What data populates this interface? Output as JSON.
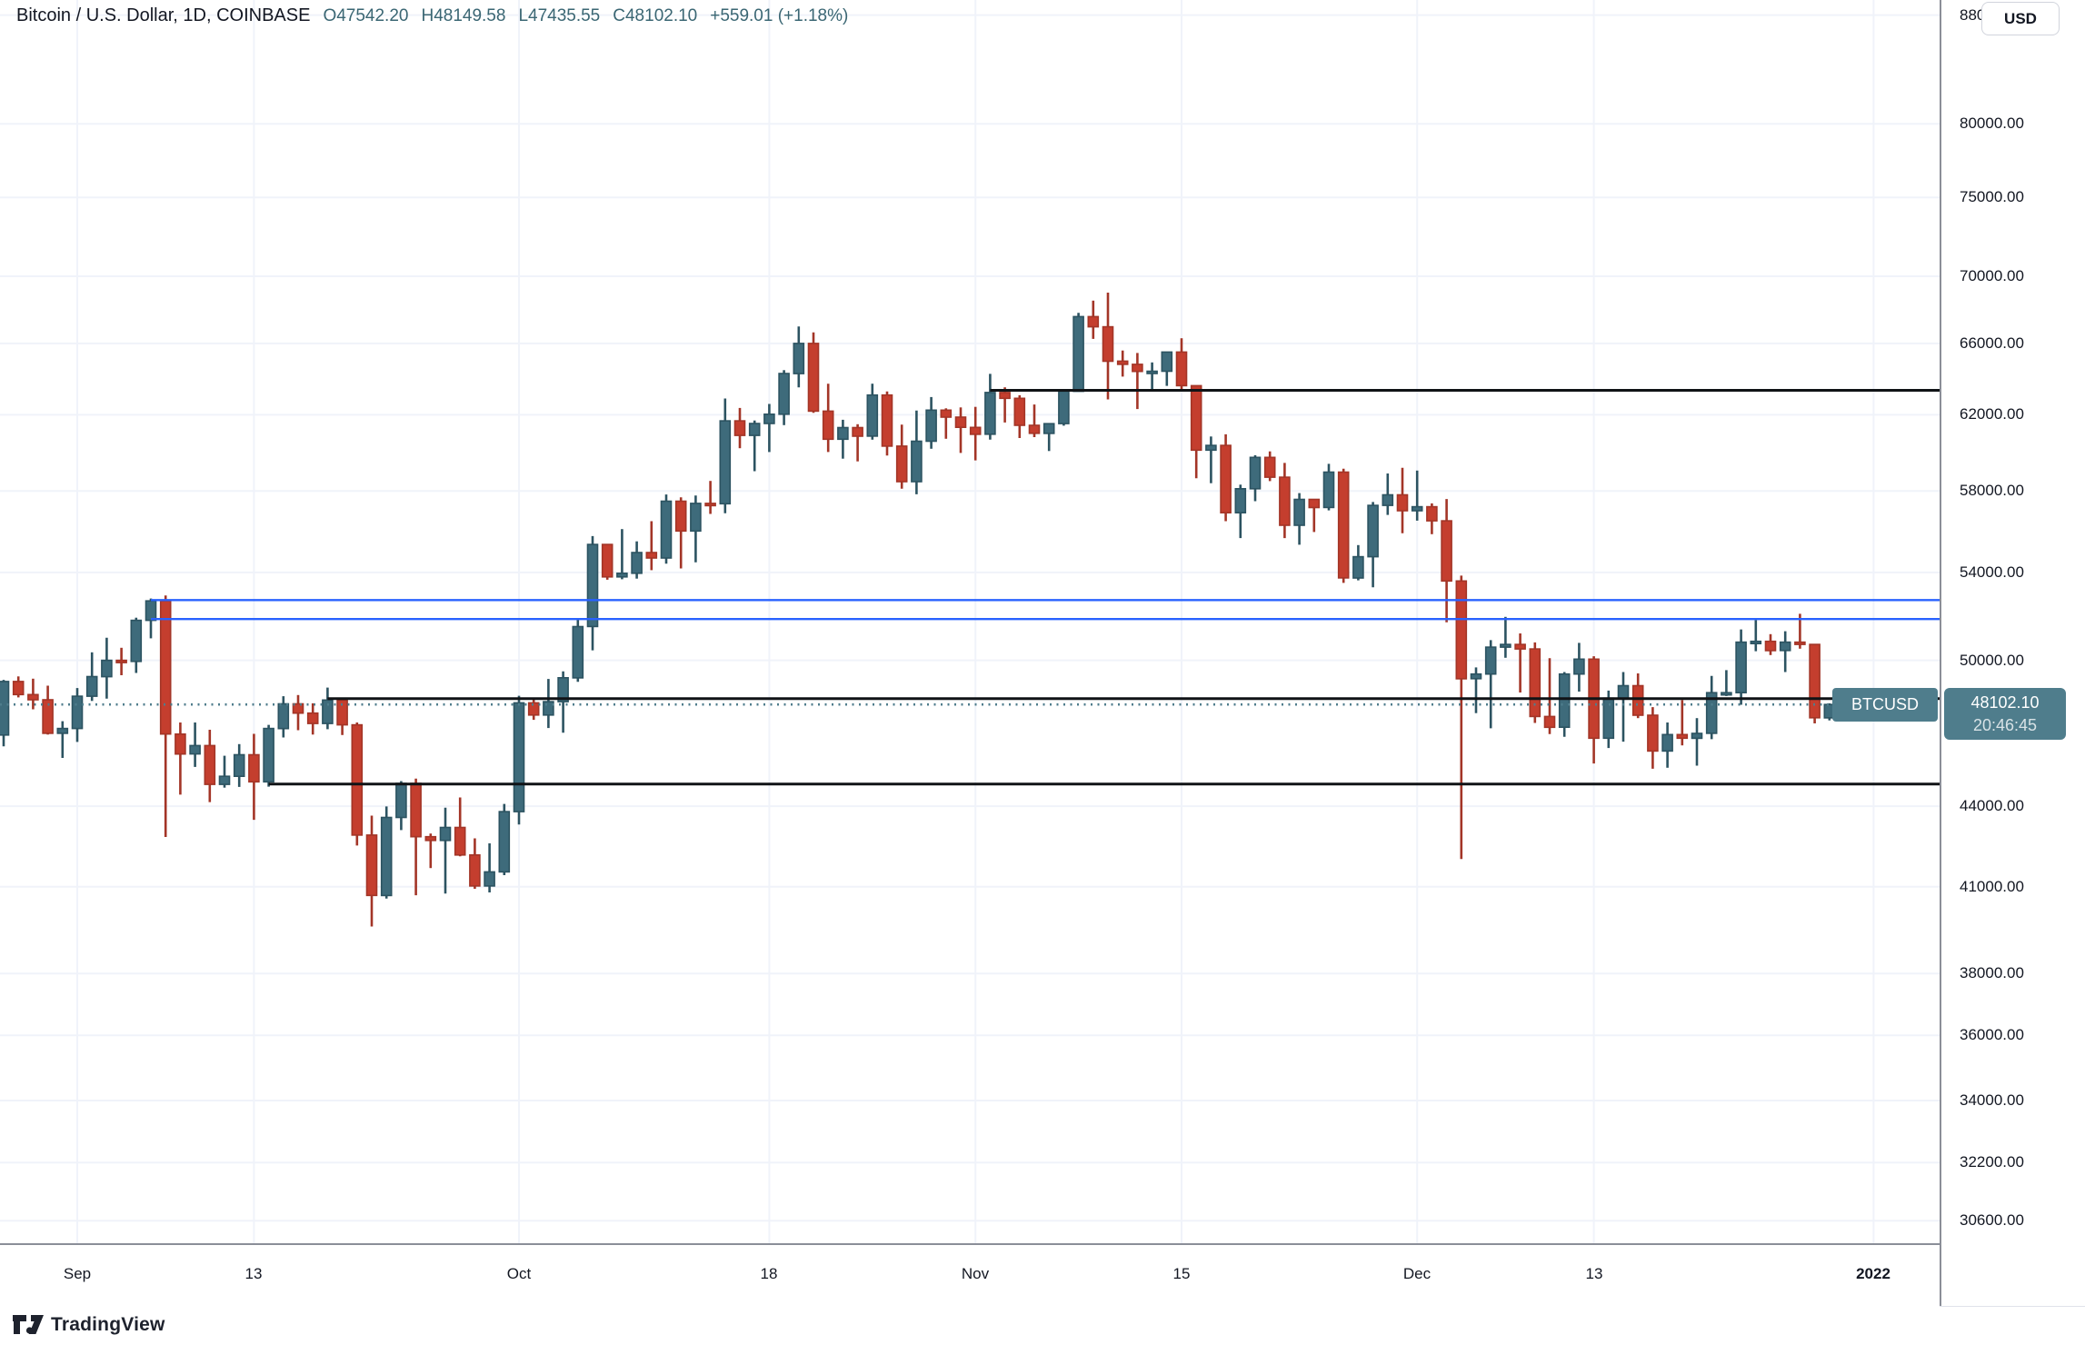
{
  "header": {
    "symbol_title": "Bitcoin / U.S. Dollar, 1D, COINBASE",
    "open": "O47542.20",
    "high": "H48149.58",
    "low": "L47435.55",
    "close": "C48102.10",
    "change": "+559.01 (+1.18%)"
  },
  "price_axis": {
    "currency_button": "USD",
    "ticks": [
      88000,
      80000,
      75000,
      70000,
      66000,
      62000,
      58000,
      54000,
      50000,
      44000,
      41000,
      38000,
      36000,
      34000,
      32200,
      30600
    ],
    "price_tag": {
      "symbol": "BTCUSD",
      "price": "48102.10",
      "countdown": "20:46:45"
    }
  },
  "time_axis": {
    "ticks": [
      {
        "label": "Sep",
        "date": "2021-09-01",
        "bold": false
      },
      {
        "label": "13",
        "date": "2021-09-13",
        "bold": false
      },
      {
        "label": "Oct",
        "date": "2021-10-01",
        "bold": false
      },
      {
        "label": "18",
        "date": "2021-10-18",
        "bold": false
      },
      {
        "label": "Nov",
        "date": "2021-11-01",
        "bold": false
      },
      {
        "label": "15",
        "date": "2021-11-15",
        "bold": false
      },
      {
        "label": "Dec",
        "date": "2021-12-01",
        "bold": false
      },
      {
        "label": "13",
        "date": "2021-12-13",
        "bold": false
      },
      {
        "label": "2022",
        "date": "2022-01-01",
        "bold": true
      }
    ]
  },
  "footer": {
    "brand": "TradingView"
  },
  "colors": {
    "up": "#3e6b7b",
    "up_border": "#2c5361",
    "down": "#c43e2e",
    "down_border": "#a33527",
    "line_black": "#101316",
    "line_blue": "#2962ff",
    "price_line": "#4f7d8c",
    "tag_bg": "#4f7d8c",
    "grid": "#f0f3fa",
    "text": "#131722",
    "values": "#3a6673"
  },
  "chart_data": {
    "type": "candlestick",
    "symbol": "BTCUSD",
    "exchange": "COINBASE",
    "interval": "1D",
    "price_scale": "log",
    "title": "Bitcoin / U.S. Dollar, 1D, COINBASE",
    "ylim": [
      29500,
      90000
    ],
    "grid": true,
    "current_price_line": {
      "price": 48102.1,
      "style": "dotted"
    },
    "horizontal_lines": [
      {
        "price": 63340,
        "start_date": "2021-11-02",
        "color": "black",
        "name": "resistance-line"
      },
      {
        "price": 48350,
        "start_date": "2021-09-18",
        "color": "black",
        "name": "support-resistance-line"
      },
      {
        "price": 44860,
        "start_date": "2021-09-14",
        "color": "black",
        "name": "support-line"
      },
      {
        "price": 52710,
        "start_date": "2021-09-06",
        "color": "blue",
        "name": "channel-upper-line"
      },
      {
        "price": 51840,
        "start_date": "2021-09-06",
        "color": "blue",
        "name": "channel-lower-line"
      }
    ],
    "candles": [
      [
        "2021-08-27",
        46830,
        49150,
        46370,
        49080
      ],
      [
        "2021-08-28",
        49080,
        49300,
        48400,
        48520
      ],
      [
        "2021-08-29",
        48520,
        49200,
        47900,
        48300
      ],
      [
        "2021-08-30",
        48300,
        48900,
        46850,
        46900
      ],
      [
        "2021-08-31",
        46900,
        47400,
        45900,
        47100
      ],
      [
        "2021-09-01",
        47100,
        48800,
        46550,
        48450
      ],
      [
        "2021-09-02",
        48450,
        50350,
        48250,
        49290
      ],
      [
        "2021-09-03",
        49290,
        51000,
        48350,
        50000
      ],
      [
        "2021-09-04",
        50000,
        50550,
        49350,
        49950
      ],
      [
        "2021-09-05",
        49950,
        51900,
        49450,
        51780
      ],
      [
        "2021-09-06",
        51780,
        52780,
        50970,
        52670
      ],
      [
        "2021-09-07",
        52670,
        52920,
        42830,
        46870
      ],
      [
        "2021-09-08",
        46870,
        47350,
        44450,
        46060
      ],
      [
        "2021-09-09",
        46060,
        47350,
        45540,
        46400
      ],
      [
        "2021-09-10",
        46400,
        47050,
        44160,
        44850
      ],
      [
        "2021-09-11",
        44850,
        45990,
        44720,
        45170
      ],
      [
        "2021-09-12",
        45170,
        46460,
        44750,
        46030
      ],
      [
        "2021-09-13",
        46030,
        46880,
        43480,
        44950
      ],
      [
        "2021-09-14",
        44950,
        47250,
        44760,
        47100
      ],
      [
        "2021-09-15",
        47100,
        48450,
        46730,
        48130
      ],
      [
        "2021-09-16",
        48130,
        48500,
        47030,
        47740
      ],
      [
        "2021-09-17",
        47740,
        48150,
        46850,
        47310
      ],
      [
        "2021-09-18",
        47310,
        48820,
        47070,
        48290
      ],
      [
        "2021-09-19",
        48290,
        48370,
        46830,
        47250
      ],
      [
        "2021-09-20",
        47250,
        47350,
        42510,
        42900
      ],
      [
        "2021-09-21",
        42900,
        43640,
        39600,
        40690
      ],
      [
        "2021-09-22",
        40690,
        43990,
        40580,
        43570
      ],
      [
        "2021-09-23",
        43570,
        44980,
        43090,
        44890
      ],
      [
        "2021-09-24",
        44890,
        45080,
        40700,
        42840
      ],
      [
        "2021-09-25",
        42840,
        42960,
        41680,
        42700
      ],
      [
        "2021-09-26",
        42700,
        43940,
        40760,
        43190
      ],
      [
        "2021-09-27",
        43190,
        44340,
        42110,
        42160
      ],
      [
        "2021-09-28",
        42160,
        42780,
        40930,
        41030
      ],
      [
        "2021-09-29",
        41030,
        42590,
        40800,
        41540
      ],
      [
        "2021-09-30",
        41540,
        44090,
        41420,
        43790
      ],
      [
        "2021-10-01",
        43790,
        48470,
        43300,
        48170
      ],
      [
        "2021-10-02",
        48170,
        48330,
        47460,
        47660
      ],
      [
        "2021-10-03",
        47660,
        49190,
        47120,
        48220
      ],
      [
        "2021-10-04",
        48220,
        49520,
        46930,
        49240
      ],
      [
        "2021-10-05",
        49240,
        51880,
        49070,
        51500
      ],
      [
        "2021-10-06",
        51500,
        55750,
        50440,
        55340
      ],
      [
        "2021-10-07",
        55340,
        55340,
        53660,
        53790
      ],
      [
        "2021-10-08",
        53790,
        56090,
        53680,
        53960
      ],
      [
        "2021-10-09",
        53960,
        55490,
        53710,
        54950
      ],
      [
        "2021-10-10",
        54950,
        56480,
        54110,
        54690
      ],
      [
        "2021-10-11",
        54690,
        57820,
        54420,
        57480
      ],
      [
        "2021-10-12",
        57480,
        57670,
        54190,
        56000
      ],
      [
        "2021-10-13",
        56000,
        57770,
        54480,
        57370
      ],
      [
        "2021-10-14",
        57370,
        58510,
        56840,
        57350
      ],
      [
        "2021-10-15",
        57350,
        62890,
        56880,
        61670
      ],
      [
        "2021-10-16",
        61670,
        62370,
        60210,
        60890
      ],
      [
        "2021-10-17",
        60890,
        61690,
        59010,
        61530
      ],
      [
        "2021-10-18",
        61530,
        62590,
        60010,
        62030
      ],
      [
        "2021-10-19",
        62030,
        64470,
        61440,
        64280
      ],
      [
        "2021-10-20",
        64280,
        66990,
        63510,
        66000
      ],
      [
        "2021-10-21",
        66000,
        66640,
        62110,
        62200
      ],
      [
        "2021-10-22",
        62200,
        63710,
        60010,
        60690
      ],
      [
        "2021-10-23",
        60690,
        61730,
        59660,
        61310
      ],
      [
        "2021-10-24",
        61310,
        61490,
        59520,
        60850
      ],
      [
        "2021-10-25",
        60850,
        63710,
        60660,
        63080
      ],
      [
        "2021-10-26",
        63080,
        63280,
        59830,
        60320
      ],
      [
        "2021-10-27",
        60320,
        61470,
        58110,
        58470
      ],
      [
        "2021-10-28",
        58470,
        62230,
        57830,
        60580
      ],
      [
        "2021-10-29",
        60580,
        62970,
        60180,
        62250
      ],
      [
        "2021-10-30",
        62250,
        62350,
        60710,
        61870
      ],
      [
        "2021-10-31",
        61870,
        62400,
        59960,
        61320
      ],
      [
        "2021-11-01",
        61320,
        62430,
        59570,
        60950
      ],
      [
        "2021-11-02",
        60950,
        64260,
        60660,
        63220
      ],
      [
        "2021-11-03",
        63220,
        63510,
        61580,
        62900
      ],
      [
        "2021-11-04",
        62900,
        63070,
        60750,
        61430
      ],
      [
        "2021-11-05",
        61430,
        62560,
        60800,
        61000
      ],
      [
        "2021-11-06",
        61000,
        61550,
        60060,
        61520
      ],
      [
        "2021-11-07",
        61520,
        63280,
        61410,
        63290
      ],
      [
        "2021-11-08",
        63290,
        67790,
        63290,
        67570
      ],
      [
        "2021-11-09",
        67570,
        68520,
        66260,
        66970
      ],
      [
        "2021-11-10",
        66970,
        69000,
        62840,
        64980
      ],
      [
        "2021-11-11",
        64980,
        65590,
        64110,
        64800
      ],
      [
        "2021-11-12",
        64800,
        65450,
        62310,
        64400
      ],
      [
        "2021-11-13",
        64400,
        64910,
        63370,
        64410
      ],
      [
        "2021-11-14",
        64410,
        65500,
        63590,
        65500
      ],
      [
        "2021-11-15",
        65500,
        66300,
        63370,
        63600
      ],
      [
        "2021-11-16",
        63600,
        63610,
        58650,
        60110
      ],
      [
        "2021-11-17",
        60110,
        60830,
        58390,
        60360
      ],
      [
        "2021-11-18",
        60360,
        60950,
        56480,
        56900
      ],
      [
        "2021-11-19",
        56900,
        58320,
        55650,
        58110
      ],
      [
        "2021-11-20",
        58110,
        59840,
        57480,
        59730
      ],
      [
        "2021-11-21",
        59730,
        60040,
        58500,
        58700
      ],
      [
        "2021-11-22",
        58700,
        59440,
        55650,
        56280
      ],
      [
        "2021-11-23",
        56280,
        57890,
        55330,
        57570
      ],
      [
        "2021-11-24",
        57570,
        57590,
        55950,
        57160
      ],
      [
        "2021-11-25",
        57160,
        59390,
        57020,
        58960
      ],
      [
        "2021-11-26",
        58960,
        59140,
        53510,
        53740
      ],
      [
        "2021-11-27",
        53740,
        55310,
        53630,
        54750
      ],
      [
        "2021-11-28",
        54750,
        57440,
        53300,
        57270
      ],
      [
        "2021-11-29",
        57270,
        58890,
        56790,
        57800
      ],
      [
        "2021-11-30",
        57800,
        59190,
        55890,
        57000
      ],
      [
        "2021-12-01",
        57000,
        59040,
        56510,
        57200
      ],
      [
        "2021-12-02",
        57200,
        57370,
        55840,
        56500
      ],
      [
        "2021-12-03",
        56500,
        57590,
        51690,
        53600
      ],
      [
        "2021-12-04",
        53600,
        53850,
        42010,
        49200
      ],
      [
        "2021-12-05",
        49200,
        49690,
        47740,
        49400
      ],
      [
        "2021-12-06",
        49400,
        50890,
        47110,
        50580
      ],
      [
        "2021-12-07",
        50580,
        51940,
        50110,
        50700
      ],
      [
        "2021-12-08",
        50700,
        51190,
        48610,
        50500
      ],
      [
        "2021-12-09",
        50500,
        50790,
        47330,
        47600
      ],
      [
        "2021-12-10",
        47600,
        50090,
        46870,
        47150
      ],
      [
        "2021-12-11",
        47150,
        49490,
        46760,
        49400
      ],
      [
        "2021-12-12",
        49400,
        50770,
        48650,
        50050
      ],
      [
        "2021-12-13",
        50050,
        50180,
        45680,
        46700
      ],
      [
        "2021-12-14",
        46700,
        48690,
        46300,
        48370
      ],
      [
        "2021-12-15",
        48370,
        49490,
        46560,
        48900
      ],
      [
        "2021-12-16",
        48900,
        49430,
        47530,
        47650
      ],
      [
        "2021-12-17",
        47650,
        47990,
        45470,
        46180
      ],
      [
        "2021-12-18",
        46180,
        47350,
        45510,
        46850
      ],
      [
        "2021-12-19",
        46850,
        48290,
        46410,
        46700
      ],
      [
        "2021-12-20",
        46700,
        47530,
        45590,
        46900
      ],
      [
        "2021-12-21",
        46900,
        49320,
        46660,
        48600
      ],
      [
        "2021-12-22",
        48600,
        49570,
        48460,
        48600
      ],
      [
        "2021-12-23",
        48600,
        51370,
        48090,
        50800
      ],
      [
        "2021-12-24",
        50800,
        51800,
        50400,
        50840
      ],
      [
        "2021-12-25",
        50840,
        51160,
        50230,
        50430
      ],
      [
        "2021-12-26",
        50430,
        51290,
        49490,
        50800
      ],
      [
        "2021-12-27",
        50800,
        52080,
        50510,
        50700
      ],
      [
        "2021-12-28",
        50700,
        50700,
        47310,
        47543
      ],
      [
        "2021-12-29",
        47542.2,
        48149.58,
        47435.55,
        48102.1
      ]
    ]
  }
}
